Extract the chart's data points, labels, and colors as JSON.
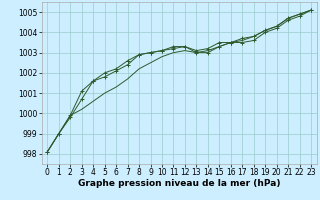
{
  "xlabel": "Graphe pression niveau de la mer (hPa)",
  "bg_color": "#cceeff",
  "grid_color": "#99cccc",
  "line_color": "#2d5a2d",
  "marker_color": "#2d5a2d",
  "ylim": [
    997.5,
    1005.5
  ],
  "yticks": [
    998,
    999,
    1000,
    1001,
    1002,
    1003,
    1004,
    1005
  ],
  "series": [
    [
      998.1,
      999.0,
      999.8,
      1000.7,
      1001.6,
      1001.8,
      1002.1,
      1002.4,
      1002.9,
      1003.0,
      1003.1,
      1003.3,
      1003.3,
      1003.0,
      1003.0,
      1003.3,
      1003.5,
      1003.5,
      1003.6,
      1004.0,
      1004.2,
      1004.6,
      1004.8,
      1005.1
    ],
    [
      998.1,
      999.0,
      999.9,
      1000.2,
      1000.6,
      1001.0,
      1001.3,
      1001.7,
      1002.2,
      1002.5,
      1002.8,
      1003.0,
      1003.1,
      1003.0,
      1003.1,
      1003.3,
      1003.5,
      1003.6,
      1003.8,
      1004.1,
      1004.3,
      1004.7,
      1004.9,
      1005.1
    ],
    [
      998.1,
      999.0,
      999.9,
      1001.1,
      1001.6,
      1002.0,
      1002.2,
      1002.6,
      1002.9,
      1003.0,
      1003.1,
      1003.2,
      1003.3,
      1003.1,
      1003.2,
      1003.5,
      1003.5,
      1003.7,
      1003.8,
      1004.1,
      1004.3,
      1004.7,
      1004.9,
      1005.1
    ]
  ],
  "figsize": [
    3.2,
    2.0
  ],
  "dpi": 100,
  "xlabel_fontsize": 6.5,
  "tick_fontsize": 5.5
}
